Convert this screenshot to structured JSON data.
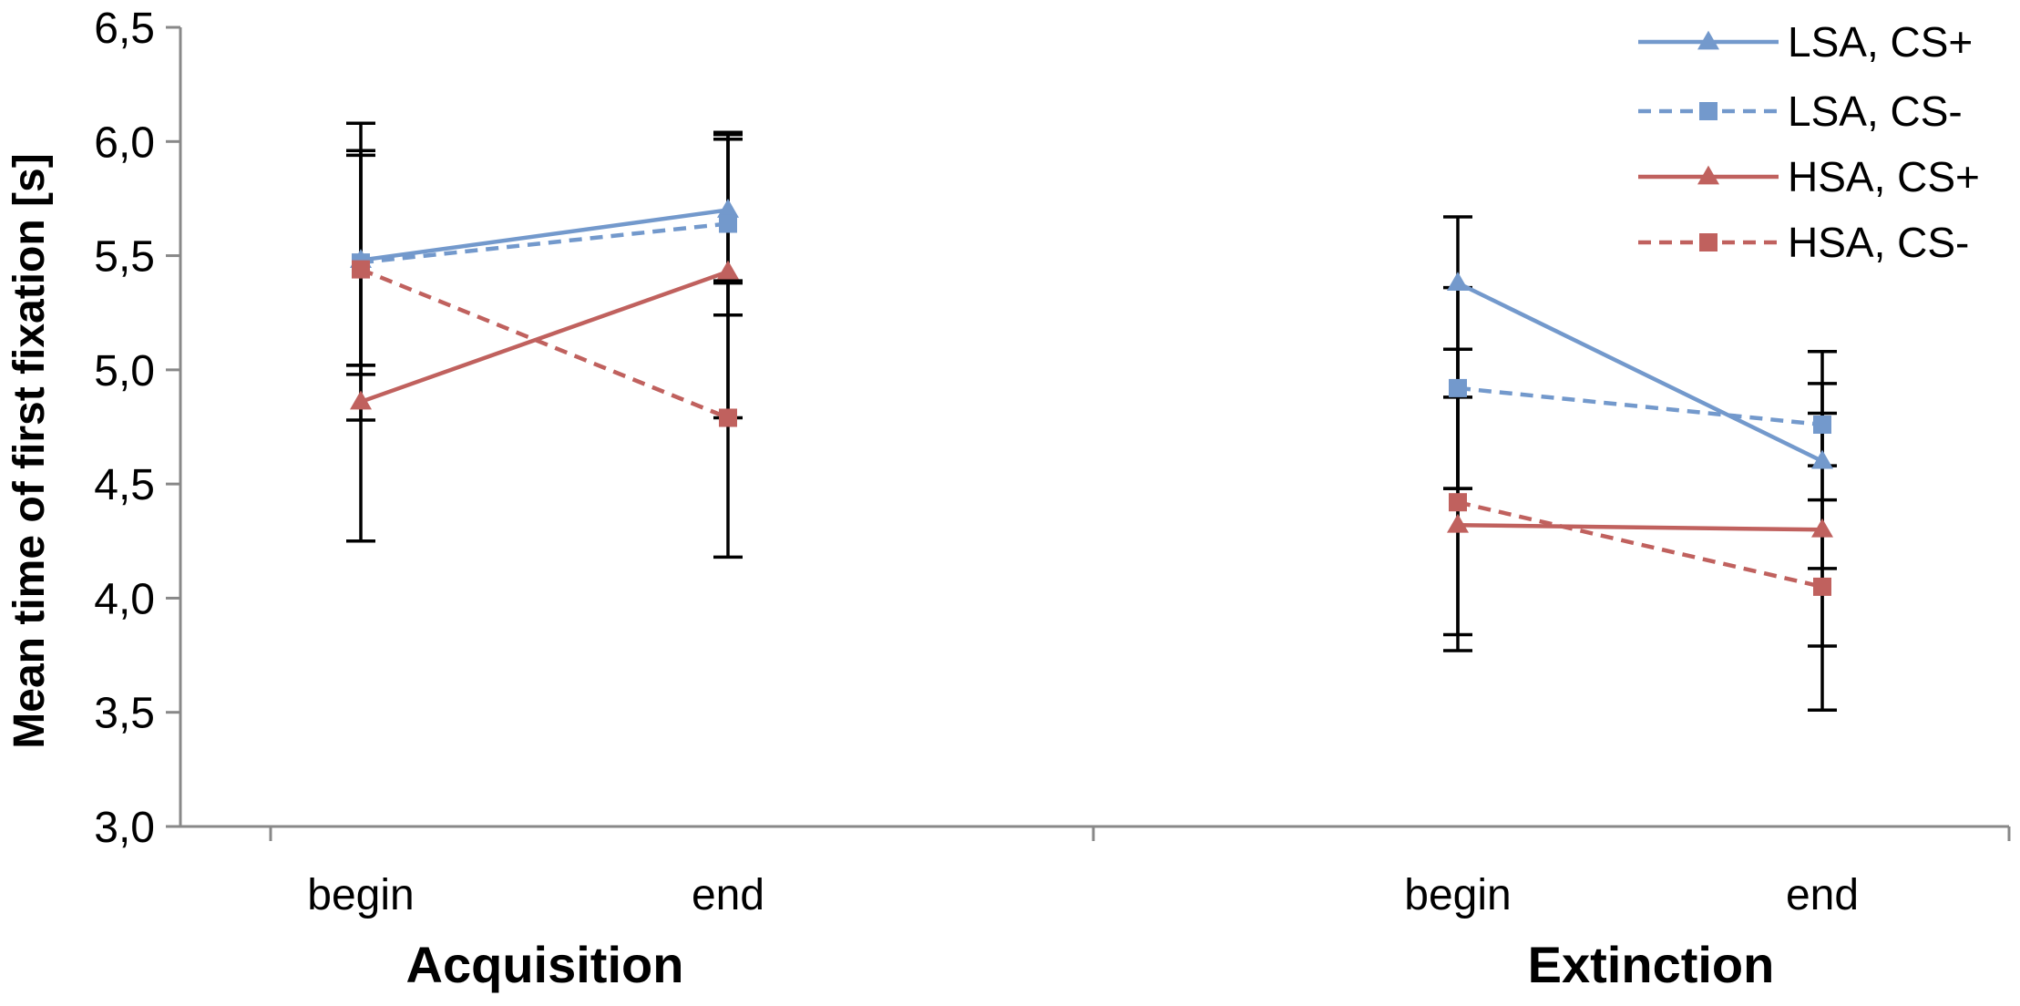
{
  "chart_data": {
    "type": "line",
    "ylabel": "Mean time of first fixation [s]",
    "xlabel": "",
    "ylim": [
      3.0,
      6.5
    ],
    "yticks": [
      "3,0",
      "3,5",
      "4,0",
      "4,5",
      "5,0",
      "5,5",
      "6,0",
      "6,5"
    ],
    "ytick_values": [
      3.0,
      3.5,
      4.0,
      4.5,
      5.0,
      5.5,
      6.0,
      6.5
    ],
    "groups": [
      "Acquisition",
      "Extinction"
    ],
    "categories": [
      "begin",
      "end",
      "begin",
      "end"
    ],
    "legend_position": "top-right",
    "series": [
      {
        "name": "LSA, CS+",
        "color": "#7399CC",
        "dash": false,
        "marker": "triangle",
        "segments": [
          [
            5.48,
            5.7
          ],
          [
            5.38,
            4.6
          ]
        ],
        "err_low": [
          [
            4.25,
            5.38
          ],
          [
            4.48,
            4.13
          ]
        ],
        "err_high": [
          [
            6.08,
            6.03
          ],
          [
            5.67,
            5.08
          ]
        ]
      },
      {
        "name": "LSA, CS-",
        "color": "#7399CC",
        "dash": true,
        "marker": "square",
        "segments": [
          [
            5.47,
            5.64
          ],
          [
            4.92,
            4.76
          ]
        ],
        "err_low": [
          [
            4.98,
            5.24
          ],
          [
            4.48,
            4.58
          ]
        ],
        "err_high": [
          [
            5.96,
            6.04
          ],
          [
            5.36,
            4.94
          ]
        ]
      },
      {
        "name": "HSA, CS+",
        "color": "#C0615E",
        "dash": false,
        "marker": "triangle",
        "segments": [
          [
            4.86,
            5.43
          ],
          [
            4.32,
            4.3
          ]
        ],
        "err_low": [
          [
            4.78,
            4.79
          ],
          [
            3.77,
            3.79
          ]
        ],
        "err_high": [
          [
            5.02,
            6.01
          ],
          [
            4.88,
            4.81
          ]
        ]
      },
      {
        "name": "HSA, CS-",
        "color": "#C0615E",
        "dash": true,
        "marker": "square",
        "segments": [
          [
            5.44,
            4.79
          ],
          [
            4.42,
            4.05
          ]
        ],
        "err_low": [
          [
            5.02,
            4.18
          ],
          [
            3.84,
            3.51
          ]
        ],
        "err_high": [
          [
            5.94,
            5.39
          ],
          [
            5.09,
            4.43
          ]
        ]
      }
    ]
  }
}
